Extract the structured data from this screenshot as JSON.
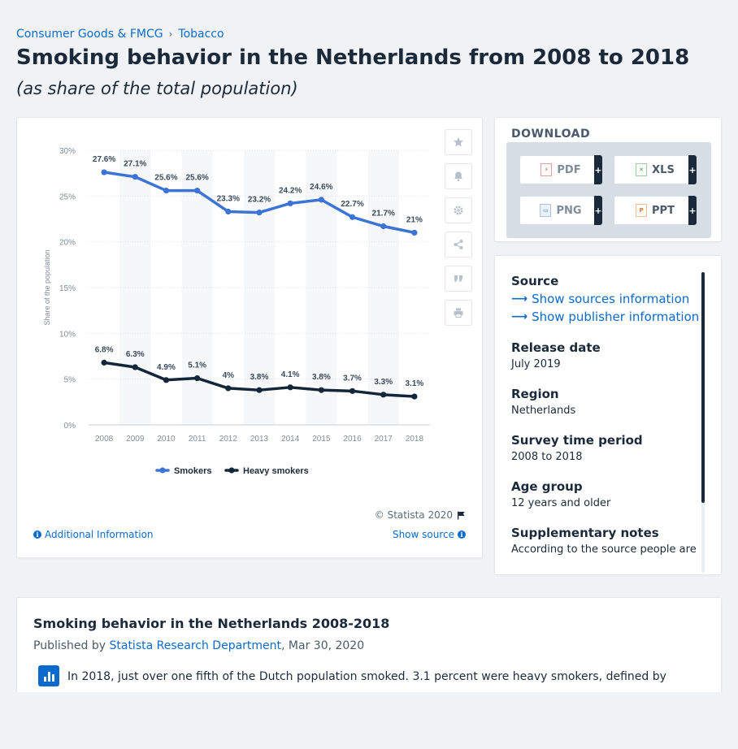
{
  "breadcrumb": {
    "items": [
      "Consumer Goods & FMCG",
      "Tobacco"
    ],
    "separator": "›"
  },
  "page": {
    "title": "Smoking behavior in the Netherlands from 2008 to 2018",
    "subtitle": "(as share of the total population)"
  },
  "chart_data": {
    "type": "line",
    "categories": [
      "2008",
      "2009",
      "2010",
      "2011",
      "2012",
      "2013",
      "2014",
      "2015",
      "2016",
      "2017",
      "2018"
    ],
    "series": [
      {
        "name": "Smokers",
        "color": "#3b74d6",
        "values": [
          27.6,
          27.1,
          25.6,
          25.6,
          23.3,
          23.2,
          24.2,
          24.6,
          22.7,
          21.7,
          21.0
        ],
        "labels": [
          "27.6%",
          "27.1%",
          "25.6%",
          "25.6%",
          "23.3%",
          "23.2%",
          "24.2%",
          "24.6%",
          "22.7%",
          "21.7%",
          "21%"
        ]
      },
      {
        "name": "Heavy smokers",
        "color": "#14263a",
        "values": [
          6.8,
          6.3,
          4.9,
          5.1,
          4.0,
          3.8,
          4.1,
          3.8,
          3.7,
          3.3,
          3.1
        ],
        "labels": [
          "6.8%",
          "6.3%",
          "4.9%",
          "5.1%",
          "4%",
          "3.8%",
          "4.1%",
          "3.8%",
          "3.7%",
          "3.3%",
          "3.1%"
        ]
      }
    ],
    "ylabel": "Share of the population",
    "xlabel": "",
    "ylim": [
      0,
      30
    ],
    "yticks": [
      0,
      5,
      10,
      15,
      20,
      25,
      30
    ],
    "ytick_labels": [
      "0%",
      "5%",
      "10%",
      "15%",
      "20%",
      "25%",
      "30%"
    ],
    "grid": true,
    "legend": "bottom-center"
  },
  "chart_footer": {
    "copyright": "© Statista 2020",
    "additional_info": "Additional Information",
    "show_source": "Show source"
  },
  "tools": [
    "star-icon",
    "bell-icon",
    "gear-icon",
    "share-icon",
    "quote-icon",
    "print-icon"
  ],
  "download": {
    "title": "DOWNLOAD",
    "buttons": [
      {
        "label": "PDF",
        "icon": "pdf-file-icon"
      },
      {
        "label": "XLS",
        "icon": "xls-file-icon"
      },
      {
        "label": "PNG",
        "icon": "png-file-icon"
      },
      {
        "label": "PPT",
        "icon": "ppt-file-icon"
      }
    ],
    "plus": "+"
  },
  "info": {
    "source_heading": "Source",
    "show_sources": "Show sources information",
    "show_publisher": "Show publisher information",
    "release_heading": "Release date",
    "release_value": "July 2019",
    "region_heading": "Region",
    "region_value": "Netherlands",
    "survey_heading": "Survey time period",
    "survey_value": "2008 to 2018",
    "age_heading": "Age group",
    "age_value": "12 years and older",
    "notes_heading": "Supplementary notes",
    "notes_value": "According to the source people are"
  },
  "description": {
    "title": "Smoking behavior in the Netherlands 2008-2018",
    "published_prefix": "Published by",
    "publisher": "Statista Research Department",
    "date": ", Mar 30, 2020",
    "text": "In 2018, just over one fifth of the Dutch population smoked. 3.1 percent were heavy smokers, defined by"
  }
}
